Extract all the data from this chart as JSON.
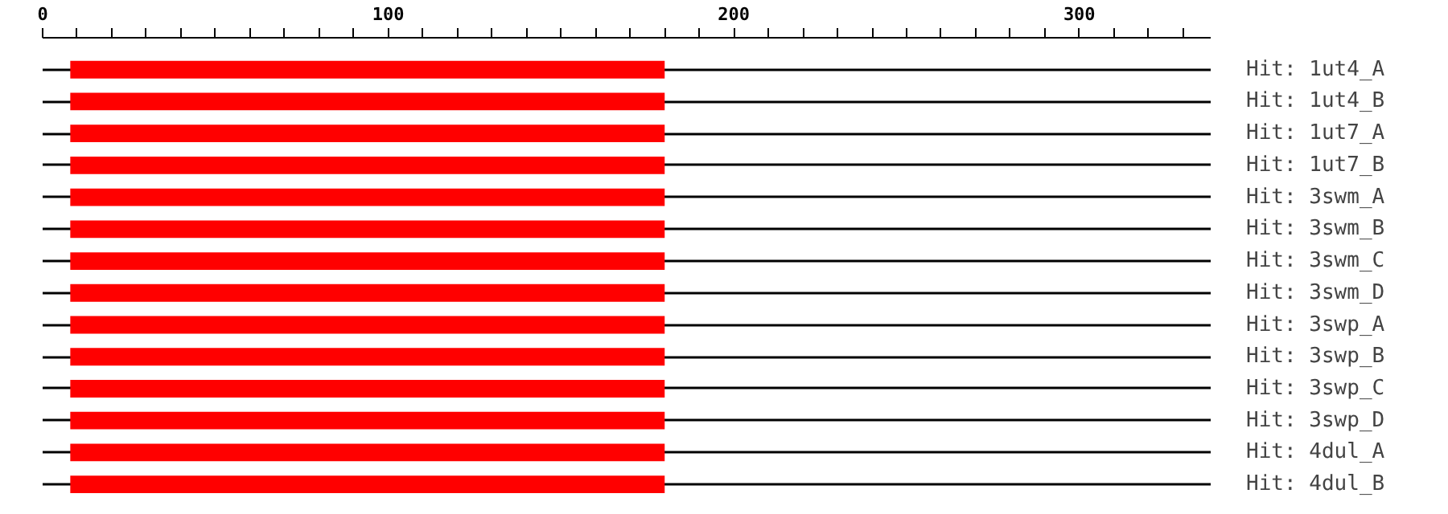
{
  "chart_data": {
    "type": "bar",
    "orientation": "horizontal",
    "categories": [
      "Hit: 1ut4_A",
      "Hit: 1ut4_B",
      "Hit: 1ut7_A",
      "Hit: 1ut7_B",
      "Hit: 3swm_A",
      "Hit: 3swm_B",
      "Hit: 3swm_C",
      "Hit: 3swm_D",
      "Hit: 3swp_A",
      "Hit: 3swp_B",
      "Hit: 3swp_C",
      "Hit: 3swp_D",
      "Hit: 4dul_A",
      "Hit: 4dul_B"
    ],
    "base": [
      8,
      8,
      8,
      8,
      8,
      8,
      8,
      8,
      8,
      8,
      8,
      8,
      8,
      8
    ],
    "values": [
      172,
      172,
      172,
      172,
      172,
      172,
      172,
      172,
      172,
      172,
      172,
      172,
      172,
      172
    ],
    "color": "#ff0000",
    "xlim": [
      0,
      338
    ],
    "xticks": [
      0,
      {
        "value": 10,
        "label": null
      },
      {
        "value": 20,
        "label": null
      },
      {
        "value": 30,
        "label": null
      },
      {
        "value": 40,
        "label": null
      },
      {
        "value": 50,
        "label": null
      },
      {
        "value": 60,
        "label": null
      },
      {
        "value": 70,
        "label": null
      },
      {
        "value": 80,
        "label": null
      },
      {
        "value": 90,
        "label": null
      },
      100,
      {
        "value": 110,
        "label": null
      },
      {
        "value": 120,
        "label": null
      },
      {
        "value": 130,
        "label": null
      },
      {
        "value": 140,
        "label": null
      },
      {
        "value": 150,
        "label": null
      },
      {
        "value": 160,
        "label": null
      },
      {
        "value": 170,
        "label": null
      },
      {
        "value": 180,
        "label": null
      },
      {
        "value": 190,
        "label": null
      },
      200,
      {
        "value": 210,
        "label": null
      },
      {
        "value": 220,
        "label": null
      },
      {
        "value": 230,
        "label": null
      },
      {
        "value": 240,
        "label": null
      },
      {
        "value": 250,
        "label": null
      },
      {
        "value": 260,
        "label": null
      },
      {
        "value": 270,
        "label": null
      },
      {
        "value": 280,
        "label": null
      },
      {
        "value": 290,
        "label": null
      },
      300,
      {
        "value": 310,
        "label": null
      },
      {
        "value": 320,
        "label": null
      },
      {
        "value": 330,
        "label": null
      }
    ],
    "grid": "y"
  }
}
